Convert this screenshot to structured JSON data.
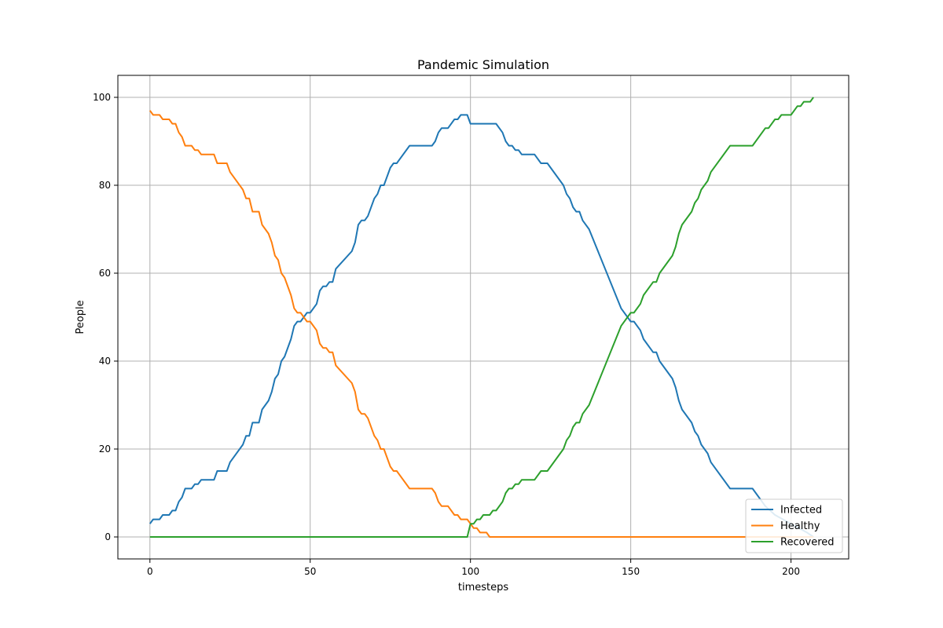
{
  "chart_data": {
    "type": "line",
    "title": "Pandemic Simulation",
    "xlabel": "timesteps",
    "ylabel": "People",
    "xlim": [
      -10,
      218
    ],
    "ylim": [
      -5,
      105
    ],
    "xticks": [
      0,
      50,
      100,
      150,
      200
    ],
    "yticks": [
      0,
      20,
      40,
      60,
      80,
      100
    ],
    "grid": true,
    "legend_position": "lower-right",
    "series": [
      {
        "name": "Infected",
        "color": "#1f77b4",
        "points": [
          [
            0,
            3
          ],
          [
            1,
            4
          ],
          [
            3,
            4
          ],
          [
            4,
            5
          ],
          [
            6,
            5
          ],
          [
            7,
            6
          ],
          [
            8,
            6
          ],
          [
            9,
            8
          ],
          [
            10,
            9
          ],
          [
            11,
            11
          ],
          [
            13,
            11
          ],
          [
            14,
            12
          ],
          [
            15,
            12
          ],
          [
            16,
            13
          ],
          [
            20,
            13
          ],
          [
            21,
            15
          ],
          [
            24,
            15
          ],
          [
            25,
            17
          ],
          [
            29,
            21
          ],
          [
            30,
            23
          ],
          [
            31,
            23
          ],
          [
            32,
            26
          ],
          [
            34,
            26
          ],
          [
            35,
            29
          ],
          [
            37,
            31
          ],
          [
            38,
            33
          ],
          [
            39,
            36
          ],
          [
            40,
            37
          ],
          [
            41,
            40
          ],
          [
            42,
            41
          ],
          [
            44,
            45
          ],
          [
            45,
            48
          ],
          [
            46,
            49
          ],
          [
            47,
            49
          ],
          [
            48,
            50
          ],
          [
            49,
            51
          ],
          [
            50,
            51
          ],
          [
            52,
            53
          ],
          [
            53,
            56
          ],
          [
            54,
            57
          ],
          [
            55,
            57
          ],
          [
            56,
            58
          ],
          [
            57,
            58
          ],
          [
            58,
            61
          ],
          [
            63,
            65
          ],
          [
            64,
            67
          ],
          [
            65,
            71
          ],
          [
            66,
            72
          ],
          [
            67,
            72
          ],
          [
            68,
            73
          ],
          [
            70,
            77
          ],
          [
            71,
            78
          ],
          [
            72,
            80
          ],
          [
            73,
            80
          ],
          [
            75,
            84
          ],
          [
            76,
            85
          ],
          [
            77,
            85
          ],
          [
            81,
            89
          ],
          [
            88,
            89
          ],
          [
            89,
            90
          ],
          [
            90,
            92
          ],
          [
            91,
            93
          ],
          [
            93,
            93
          ],
          [
            95,
            95
          ],
          [
            96,
            95
          ],
          [
            97,
            96
          ],
          [
            99,
            96
          ],
          [
            100,
            94
          ],
          [
            108,
            94
          ],
          [
            110,
            92
          ],
          [
            111,
            90
          ],
          [
            112,
            89
          ],
          [
            113,
            89
          ],
          [
            114,
            88
          ],
          [
            115,
            88
          ],
          [
            116,
            87
          ],
          [
            120,
            87
          ],
          [
            122,
            85
          ],
          [
            124,
            85
          ],
          [
            129,
            80
          ],
          [
            130,
            78
          ],
          [
            131,
            77
          ],
          [
            132,
            75
          ],
          [
            133,
            74
          ],
          [
            134,
            74
          ],
          [
            135,
            72
          ],
          [
            137,
            70
          ],
          [
            147,
            52
          ],
          [
            150,
            49
          ],
          [
            151,
            49
          ],
          [
            153,
            47
          ],
          [
            154,
            45
          ],
          [
            157,
            42
          ],
          [
            158,
            42
          ],
          [
            159,
            40
          ],
          [
            163,
            36
          ],
          [
            164,
            34
          ],
          [
            165,
            31
          ],
          [
            166,
            29
          ],
          [
            169,
            26
          ],
          [
            170,
            24
          ],
          [
            171,
            23
          ],
          [
            172,
            21
          ],
          [
            174,
            19
          ],
          [
            175,
            17
          ],
          [
            181,
            11
          ],
          [
            188,
            11
          ],
          [
            192,
            7
          ],
          [
            195,
            5
          ],
          [
            200,
            3
          ],
          [
            205,
            1
          ],
          [
            207,
            0
          ]
        ]
      },
      {
        "name": "Healthy",
        "color": "#ff7f0e",
        "points": [
          [
            0,
            97
          ],
          [
            1,
            96
          ],
          [
            3,
            96
          ],
          [
            4,
            95
          ],
          [
            6,
            95
          ],
          [
            7,
            94
          ],
          [
            8,
            94
          ],
          [
            9,
            92
          ],
          [
            10,
            91
          ],
          [
            11,
            89
          ],
          [
            13,
            89
          ],
          [
            14,
            88
          ],
          [
            15,
            88
          ],
          [
            16,
            87
          ],
          [
            20,
            87
          ],
          [
            21,
            85
          ],
          [
            24,
            85
          ],
          [
            25,
            83
          ],
          [
            29,
            79
          ],
          [
            30,
            77
          ],
          [
            31,
            77
          ],
          [
            32,
            74
          ],
          [
            34,
            74
          ],
          [
            35,
            71
          ],
          [
            37,
            69
          ],
          [
            38,
            67
          ],
          [
            39,
            64
          ],
          [
            40,
            63
          ],
          [
            41,
            60
          ],
          [
            42,
            59
          ],
          [
            44,
            55
          ],
          [
            45,
            52
          ],
          [
            46,
            51
          ],
          [
            47,
            51
          ],
          [
            48,
            50
          ],
          [
            49,
            49
          ],
          [
            50,
            49
          ],
          [
            52,
            47
          ],
          [
            53,
            44
          ],
          [
            54,
            43
          ],
          [
            55,
            43
          ],
          [
            56,
            42
          ],
          [
            57,
            42
          ],
          [
            58,
            39
          ],
          [
            63,
            35
          ],
          [
            64,
            33
          ],
          [
            65,
            29
          ],
          [
            66,
            28
          ],
          [
            67,
            28
          ],
          [
            68,
            27
          ],
          [
            70,
            23
          ],
          [
            71,
            22
          ],
          [
            72,
            20
          ],
          [
            73,
            20
          ],
          [
            75,
            16
          ],
          [
            76,
            15
          ],
          [
            77,
            15
          ],
          [
            81,
            11
          ],
          [
            88,
            11
          ],
          [
            89,
            10
          ],
          [
            90,
            8
          ],
          [
            91,
            7
          ],
          [
            93,
            7
          ],
          [
            95,
            5
          ],
          [
            96,
            5
          ],
          [
            97,
            4
          ],
          [
            99,
            4
          ],
          [
            100,
            3
          ],
          [
            101,
            2
          ],
          [
            102,
            2
          ],
          [
            103,
            1
          ],
          [
            105,
            1
          ],
          [
            106,
            0
          ],
          [
            207,
            0
          ]
        ]
      },
      {
        "name": "Recovered",
        "color": "#2ca02c",
        "points": [
          [
            0,
            0
          ],
          [
            99,
            0
          ],
          [
            100,
            3
          ],
          [
            101,
            3
          ],
          [
            102,
            4
          ],
          [
            103,
            4
          ],
          [
            104,
            5
          ],
          [
            106,
            5
          ],
          [
            107,
            6
          ],
          [
            108,
            6
          ],
          [
            110,
            8
          ],
          [
            111,
            10
          ],
          [
            112,
            11
          ],
          [
            113,
            11
          ],
          [
            114,
            12
          ],
          [
            115,
            12
          ],
          [
            116,
            13
          ],
          [
            120,
            13
          ],
          [
            122,
            15
          ],
          [
            124,
            15
          ],
          [
            129,
            20
          ],
          [
            130,
            22
          ],
          [
            131,
            23
          ],
          [
            132,
            25
          ],
          [
            133,
            26
          ],
          [
            134,
            26
          ],
          [
            135,
            28
          ],
          [
            137,
            30
          ],
          [
            147,
            48
          ],
          [
            150,
            51
          ],
          [
            151,
            51
          ],
          [
            153,
            53
          ],
          [
            154,
            55
          ],
          [
            157,
            58
          ],
          [
            158,
            58
          ],
          [
            159,
            60
          ],
          [
            163,
            64
          ],
          [
            164,
            66
          ],
          [
            165,
            69
          ],
          [
            166,
            71
          ],
          [
            169,
            74
          ],
          [
            170,
            76
          ],
          [
            171,
            77
          ],
          [
            172,
            79
          ],
          [
            174,
            81
          ],
          [
            175,
            83
          ],
          [
            181,
            89
          ],
          [
            188,
            89
          ],
          [
            192,
            93
          ],
          [
            193,
            93
          ],
          [
            195,
            95
          ],
          [
            196,
            95
          ],
          [
            197,
            96
          ],
          [
            200,
            96
          ],
          [
            201,
            97
          ],
          [
            202,
            98
          ],
          [
            203,
            98
          ],
          [
            204,
            99
          ],
          [
            206,
            99
          ],
          [
            207,
            100
          ]
        ]
      }
    ]
  }
}
